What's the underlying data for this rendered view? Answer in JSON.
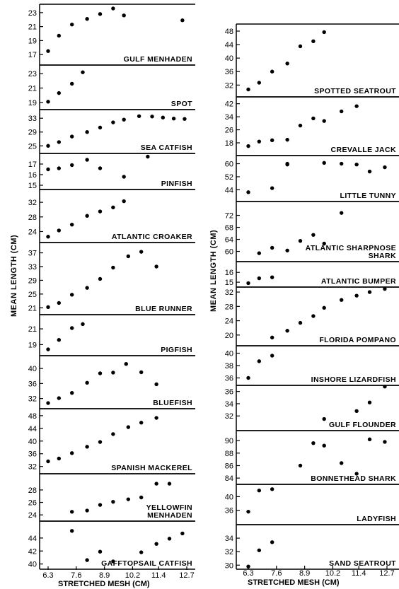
{
  "figure": {
    "left_ylabel": "MEAN LENGTH (CM)",
    "right_ylabel": "MEAN LENGTH (CM)",
    "left_xlabel": "STRETCHED MESH (CM)",
    "right_xlabel": "STRETCHED MESH (CM)"
  },
  "chart_data": [
    {
      "type": "scatter",
      "column": "left",
      "title": "GULF MENHADEN",
      "xticks": [
        "6.3",
        "7.6",
        "8.9",
        "10.2",
        "11.4",
        "12.7"
      ],
      "yticks": [
        17,
        19,
        21,
        23
      ],
      "ylim": [
        15.5,
        24.2
      ],
      "x": [
        6.3,
        6.8,
        7.4,
        8.1,
        8.7,
        9.3,
        9.8,
        12.5
      ],
      "y": [
        17.5,
        19.7,
        21.3,
        22.1,
        22.8,
        23.6,
        22.6,
        21.9
      ]
    },
    {
      "type": "scatter",
      "column": "left",
      "title": "SPOT",
      "yticks": [
        19,
        21,
        23
      ],
      "ylim": [
        18.0,
        24.2
      ],
      "x": [
        6.3,
        6.8,
        7.4,
        7.9
      ],
      "y": [
        19.1,
        20.3,
        21.6,
        23.2
      ]
    },
    {
      "type": "scatter",
      "column": "left",
      "title": "SEA CATFISH",
      "yticks": [
        25,
        29,
        33
      ],
      "ylim": [
        22.8,
        35.5
      ],
      "x": [
        6.3,
        6.8,
        7.4,
        8.1,
        8.7,
        9.3,
        9.8,
        10.5,
        11.1,
        11.6,
        12.1,
        12.6
      ],
      "y": [
        25.0,
        26.1,
        27.7,
        29.0,
        30.3,
        31.8,
        32.6,
        33.6,
        33.5,
        33.2,
        32.9,
        32.8
      ]
    },
    {
      "type": "scatter",
      "column": "left",
      "title": "PINFISH",
      "yticks": [
        15,
        16,
        17
      ],
      "ylim": [
        14.6,
        18.0
      ],
      "x": [
        6.3,
        6.8,
        7.4,
        8.1,
        8.7,
        9.8,
        10.9
      ],
      "y": [
        16.5,
        16.6,
        16.9,
        17.4,
        16.6,
        15.8,
        17.7
      ]
    },
    {
      "type": "scatter",
      "column": "left",
      "title": "ATLANTIC CROAKER",
      "yticks": [
        24,
        28,
        32
      ],
      "ylim": [
        21.0,
        35.5
      ],
      "x": [
        6.3,
        6.8,
        7.4,
        8.1,
        8.7,
        9.3,
        9.8
      ],
      "y": [
        22.6,
        24.3,
        25.9,
        28.3,
        29.5,
        30.6,
        32.3
      ]
    },
    {
      "type": "scatter",
      "column": "left",
      "title": "BLUE RUNNER",
      "yticks": [
        21,
        25,
        29,
        33,
        37
      ],
      "ylim": [
        19.0,
        40.0
      ],
      "x": [
        6.3,
        6.8,
        7.4,
        8.1,
        8.7,
        9.3,
        10.0,
        10.6,
        11.3
      ],
      "y": [
        21.2,
        22.4,
        24.8,
        26.8,
        29.4,
        32.7,
        36.0,
        37.3,
        33.0
      ]
    },
    {
      "type": "scatter",
      "column": "left",
      "title": "PIGFISH",
      "yticks": [
        19,
        21
      ],
      "ylim": [
        17.6,
        22.8
      ],
      "x": [
        6.3,
        6.8,
        7.4,
        7.9
      ],
      "y": [
        18.4,
        19.6,
        21.1,
        21.6
      ]
    },
    {
      "type": "scatter",
      "column": "left",
      "title": "BLUEFISH",
      "yticks": [
        32,
        36,
        40
      ],
      "ylim": [
        29.3,
        43.4
      ],
      "x": [
        6.3,
        6.8,
        7.4,
        8.1,
        8.7,
        9.3,
        9.9,
        10.6,
        11.3
      ],
      "y": [
        30.8,
        32.1,
        33.5,
        36.2,
        38.7,
        38.9,
        41.2,
        39.0,
        35.8
      ]
    },
    {
      "type": "scatter",
      "column": "left",
      "title": "SPANISH MACKEREL",
      "yticks": [
        32,
        36,
        40,
        44,
        48
      ],
      "ylim": [
        29.7,
        50.2
      ],
      "x": [
        6.3,
        6.8,
        7.4,
        8.1,
        8.7,
        9.3,
        10.0,
        10.6,
        11.3
      ],
      "y": [
        33.6,
        34.5,
        36.2,
        38.2,
        39.7,
        42.2,
        44.4,
        45.8,
        47.3
      ]
    },
    {
      "type": "scatter",
      "column": "left",
      "title": "YELLOWFIN MENHADEN",
      "yticks": [
        24,
        26,
        28
      ],
      "ylim": [
        23.0,
        30.6
      ],
      "x": [
        7.4,
        8.1,
        8.7,
        9.3,
        10.0,
        10.6,
        11.3,
        11.9
      ],
      "y": [
        24.5,
        24.7,
        25.6,
        26.1,
        26.5,
        26.8,
        29.0,
        29.0
      ]
    },
    {
      "type": "scatter",
      "column": "left",
      "title": "GAFFTOPSAIL CATFISH",
      "yticks": [
        40,
        42,
        44
      ],
      "ylim": [
        39.2,
        46.6
      ],
      "x": [
        7.4,
        8.1,
        8.7,
        9.3,
        10.6,
        11.3,
        11.9,
        12.5
      ],
      "y": [
        45.1,
        40.6,
        41.9,
        40.4,
        41.8,
        43.1,
        43.9,
        44.7
      ]
    },
    {
      "type": "scatter",
      "column": "right",
      "title": "SPOTTED SEATROUT",
      "xticks": [
        "6.3",
        "7.6",
        "8.9",
        "10.2",
        "11.4",
        "12.7"
      ],
      "yticks": [
        32,
        36,
        40,
        44,
        48
      ],
      "ylim": [
        28.5,
        50.1
      ],
      "x": [
        6.3,
        6.8,
        7.4,
        8.1,
        8.7,
        9.3,
        9.8
      ],
      "y": [
        30.7,
        32.7,
        36.0,
        38.4,
        43.5,
        45.0,
        47.7
      ]
    },
    {
      "type": "scatter",
      "column": "right",
      "title": "CREVALLE JACK",
      "yticks": [
        18,
        26,
        34,
        42
      ],
      "ylim": [
        10.2,
        46.2
      ],
      "x": [
        6.3,
        6.8,
        7.4,
        8.1,
        8.7,
        9.3,
        9.8,
        10.6,
        11.3
      ],
      "y": [
        16.0,
        18.8,
        19.6,
        19.9,
        28.6,
        33.0,
        31.4,
        37.3,
        40.5
      ]
    },
    {
      "type": "scatter",
      "column": "right",
      "title": "LITTLE TUNNY",
      "yticks": [
        44,
        52,
        60
      ],
      "ylim": [
        36.8,
        65.0
      ],
      "x": [
        6.3,
        7.4,
        8.1,
        8.1,
        9.8,
        10.6,
        11.3,
        11.9,
        12.6
      ],
      "y": [
        42.5,
        45.0,
        59.5,
        60.0,
        60.5,
        60.0,
        59.5,
        55.2,
        57.8
      ]
    },
    {
      "type": "scatter",
      "column": "right",
      "title": "ATLANTIC SHARPNOSE SHARK",
      "yticks": [
        60,
        64,
        68,
        72
      ],
      "ylim": [
        56.6,
        76.6
      ],
      "x": [
        6.8,
        7.4,
        8.1,
        8.7,
        9.3,
        9.8,
        10.6
      ],
      "y": [
        59.4,
        61.2,
        60.3,
        63.5,
        65.5,
        62.6,
        72.8
      ]
    },
    {
      "type": "scatter",
      "column": "right",
      "title": "ATLANTIC BUMPER",
      "yticks": [
        15,
        16
      ],
      "ylim": [
        14.5,
        17.1
      ],
      "x": [
        6.3,
        6.8,
        7.4
      ],
      "y": [
        14.9,
        15.4,
        15.5
      ]
    },
    {
      "type": "scatter",
      "column": "right",
      "title": "FLORIDA POMPANO",
      "yticks": [
        20,
        24,
        28,
        32
      ],
      "ylim": [
        17.0,
        33.4
      ],
      "x": [
        7.4,
        8.1,
        8.7,
        9.3,
        9.8,
        10.6,
        11.3,
        11.9,
        12.6
      ],
      "y": [
        19.3,
        21.2,
        23.4,
        25.3,
        27.6,
        29.8,
        31.0,
        32.0,
        32.9
      ]
    },
    {
      "type": "scatter",
      "column": "right",
      "title": "INSHORE LIZARDFISH",
      "yticks": [
        36,
        38,
        40
      ],
      "ylim": [
        34.8,
        41.2
      ],
      "x": [
        6.3,
        6.8,
        7.4
      ],
      "y": [
        36.0,
        38.7,
        39.6
      ]
    },
    {
      "type": "scatter",
      "column": "right",
      "title": "GULF FLOUNDER",
      "yticks": [
        32,
        34,
        36
      ],
      "ylim": [
        29.6,
        37.0
      ],
      "x": [
        9.8,
        11.3,
        11.9,
        12.6
      ],
      "y": [
        31.5,
        32.8,
        34.2,
        36.8
      ]
    },
    {
      "type": "scatter",
      "column": "right",
      "title": "BONNETHEAD SHARK",
      "yticks": [
        84,
        86,
        88,
        90
      ],
      "ylim": [
        83.0,
        91.6
      ],
      "x": [
        8.7,
        9.3,
        9.8,
        10.6,
        11.3,
        11.9,
        12.6
      ],
      "y": [
        86.0,
        89.6,
        89.2,
        86.4,
        84.7,
        90.2,
        89.8
      ]
    },
    {
      "type": "scatter",
      "column": "right",
      "title": "LADYFISH",
      "yticks": [
        36,
        40
      ],
      "ylim": [
        31.8,
        43.6
      ],
      "x": [
        6.3,
        6.8,
        7.4
      ],
      "y": [
        35.6,
        41.8,
        42.2
      ]
    },
    {
      "type": "scatter",
      "column": "right",
      "title": "SAND SEATROUT",
      "yticks": [
        30,
        32,
        34
      ],
      "ylim": [
        29.4,
        36.0
      ],
      "x": [
        6.3,
        6.8,
        7.4
      ],
      "y": [
        29.8,
        32.2,
        33.4
      ]
    }
  ]
}
